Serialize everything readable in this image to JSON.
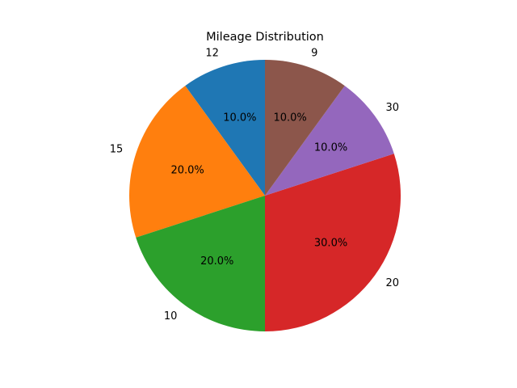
{
  "chart_data": {
    "type": "pie",
    "title": "Mileage Distribution",
    "start_angle_deg": 90,
    "direction": "counterclockwise",
    "slices": [
      {
        "label": "12",
        "value": 10,
        "pct_label": "10.0%",
        "color": "#1f77b4"
      },
      {
        "label": "15",
        "value": 20,
        "pct_label": "20.0%",
        "color": "#ff7f0e"
      },
      {
        "label": "10",
        "value": 20,
        "pct_label": "20.0%",
        "color": "#2ca02c"
      },
      {
        "label": "20",
        "value": 30,
        "pct_label": "30.0%",
        "color": "#d62728"
      },
      {
        "label": "30",
        "value": 10,
        "pct_label": "10.0%",
        "color": "#9467bd"
      },
      {
        "label": "9",
        "value": 10,
        "pct_label": "10.0%",
        "color": "#8c564b"
      }
    ]
  }
}
